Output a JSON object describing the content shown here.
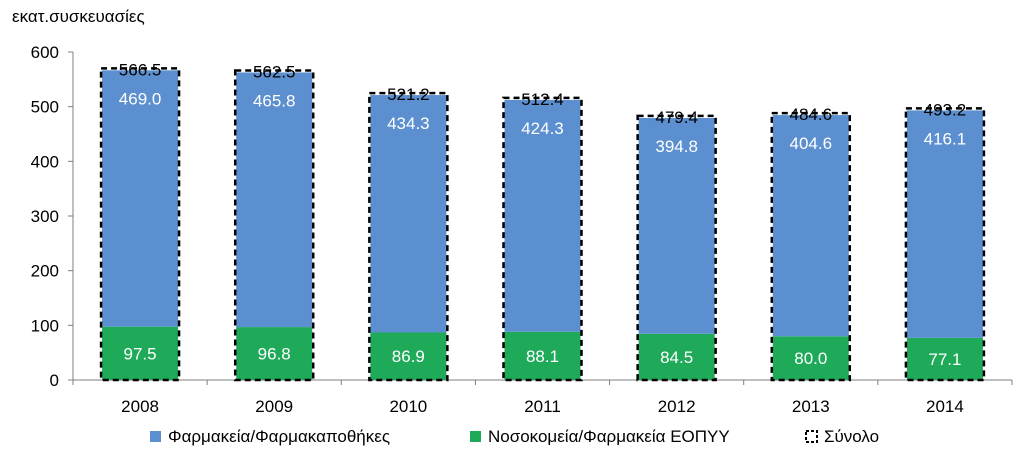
{
  "chart_data": {
    "type": "bar",
    "stacked": true,
    "ylabel": "εκατ.συσκευασίες",
    "ylim": [
      0,
      600
    ],
    "yticks": [
      0,
      100,
      200,
      300,
      400,
      500,
      600
    ],
    "categories": [
      "2008",
      "2009",
      "2010",
      "2011",
      "2012",
      "2013",
      "2014"
    ],
    "series": [
      {
        "name": "Νοσοκομεία/Φαρμακεία ΕΟΠΥΥ",
        "color": "#1faa5a",
        "values": [
          97.5,
          96.8,
          86.9,
          88.1,
          84.5,
          80.0,
          77.1
        ],
        "labels": [
          "97.5",
          "96.8",
          "86.9",
          "88.1",
          "84.5",
          "80.0",
          "77.1"
        ]
      },
      {
        "name": "Φαρμακεία/Φαρμακαποθήκες",
        "color": "#5b8fcf",
        "values": [
          469.0,
          465.8,
          434.3,
          424.3,
          394.8,
          404.6,
          416.1
        ],
        "labels": [
          "469.0",
          "465.8",
          "434.3",
          "424.3",
          "394.8",
          "404.6",
          "416.1"
        ]
      }
    ],
    "total": {
      "name": "Σύνολο",
      "values": [
        566.5,
        562.5,
        521.2,
        512.4,
        479.4,
        484.6,
        493.2
      ],
      "labels": [
        "566.5",
        "562.5",
        "521.2",
        "512.4",
        "479.4",
        "484.6",
        "493.2"
      ]
    },
    "legend": {
      "position": "bottom",
      "items": [
        {
          "label": "Φαρμακεία/Φαρμακαποθήκες",
          "color": "#5b8fcf"
        },
        {
          "label": "Νοσοκομεία/Φαρμακεία ΕΟΠΥΥ",
          "color": "#1faa5a"
        },
        {
          "label": "Σύνολο",
          "style": "dashed-box"
        }
      ]
    }
  }
}
